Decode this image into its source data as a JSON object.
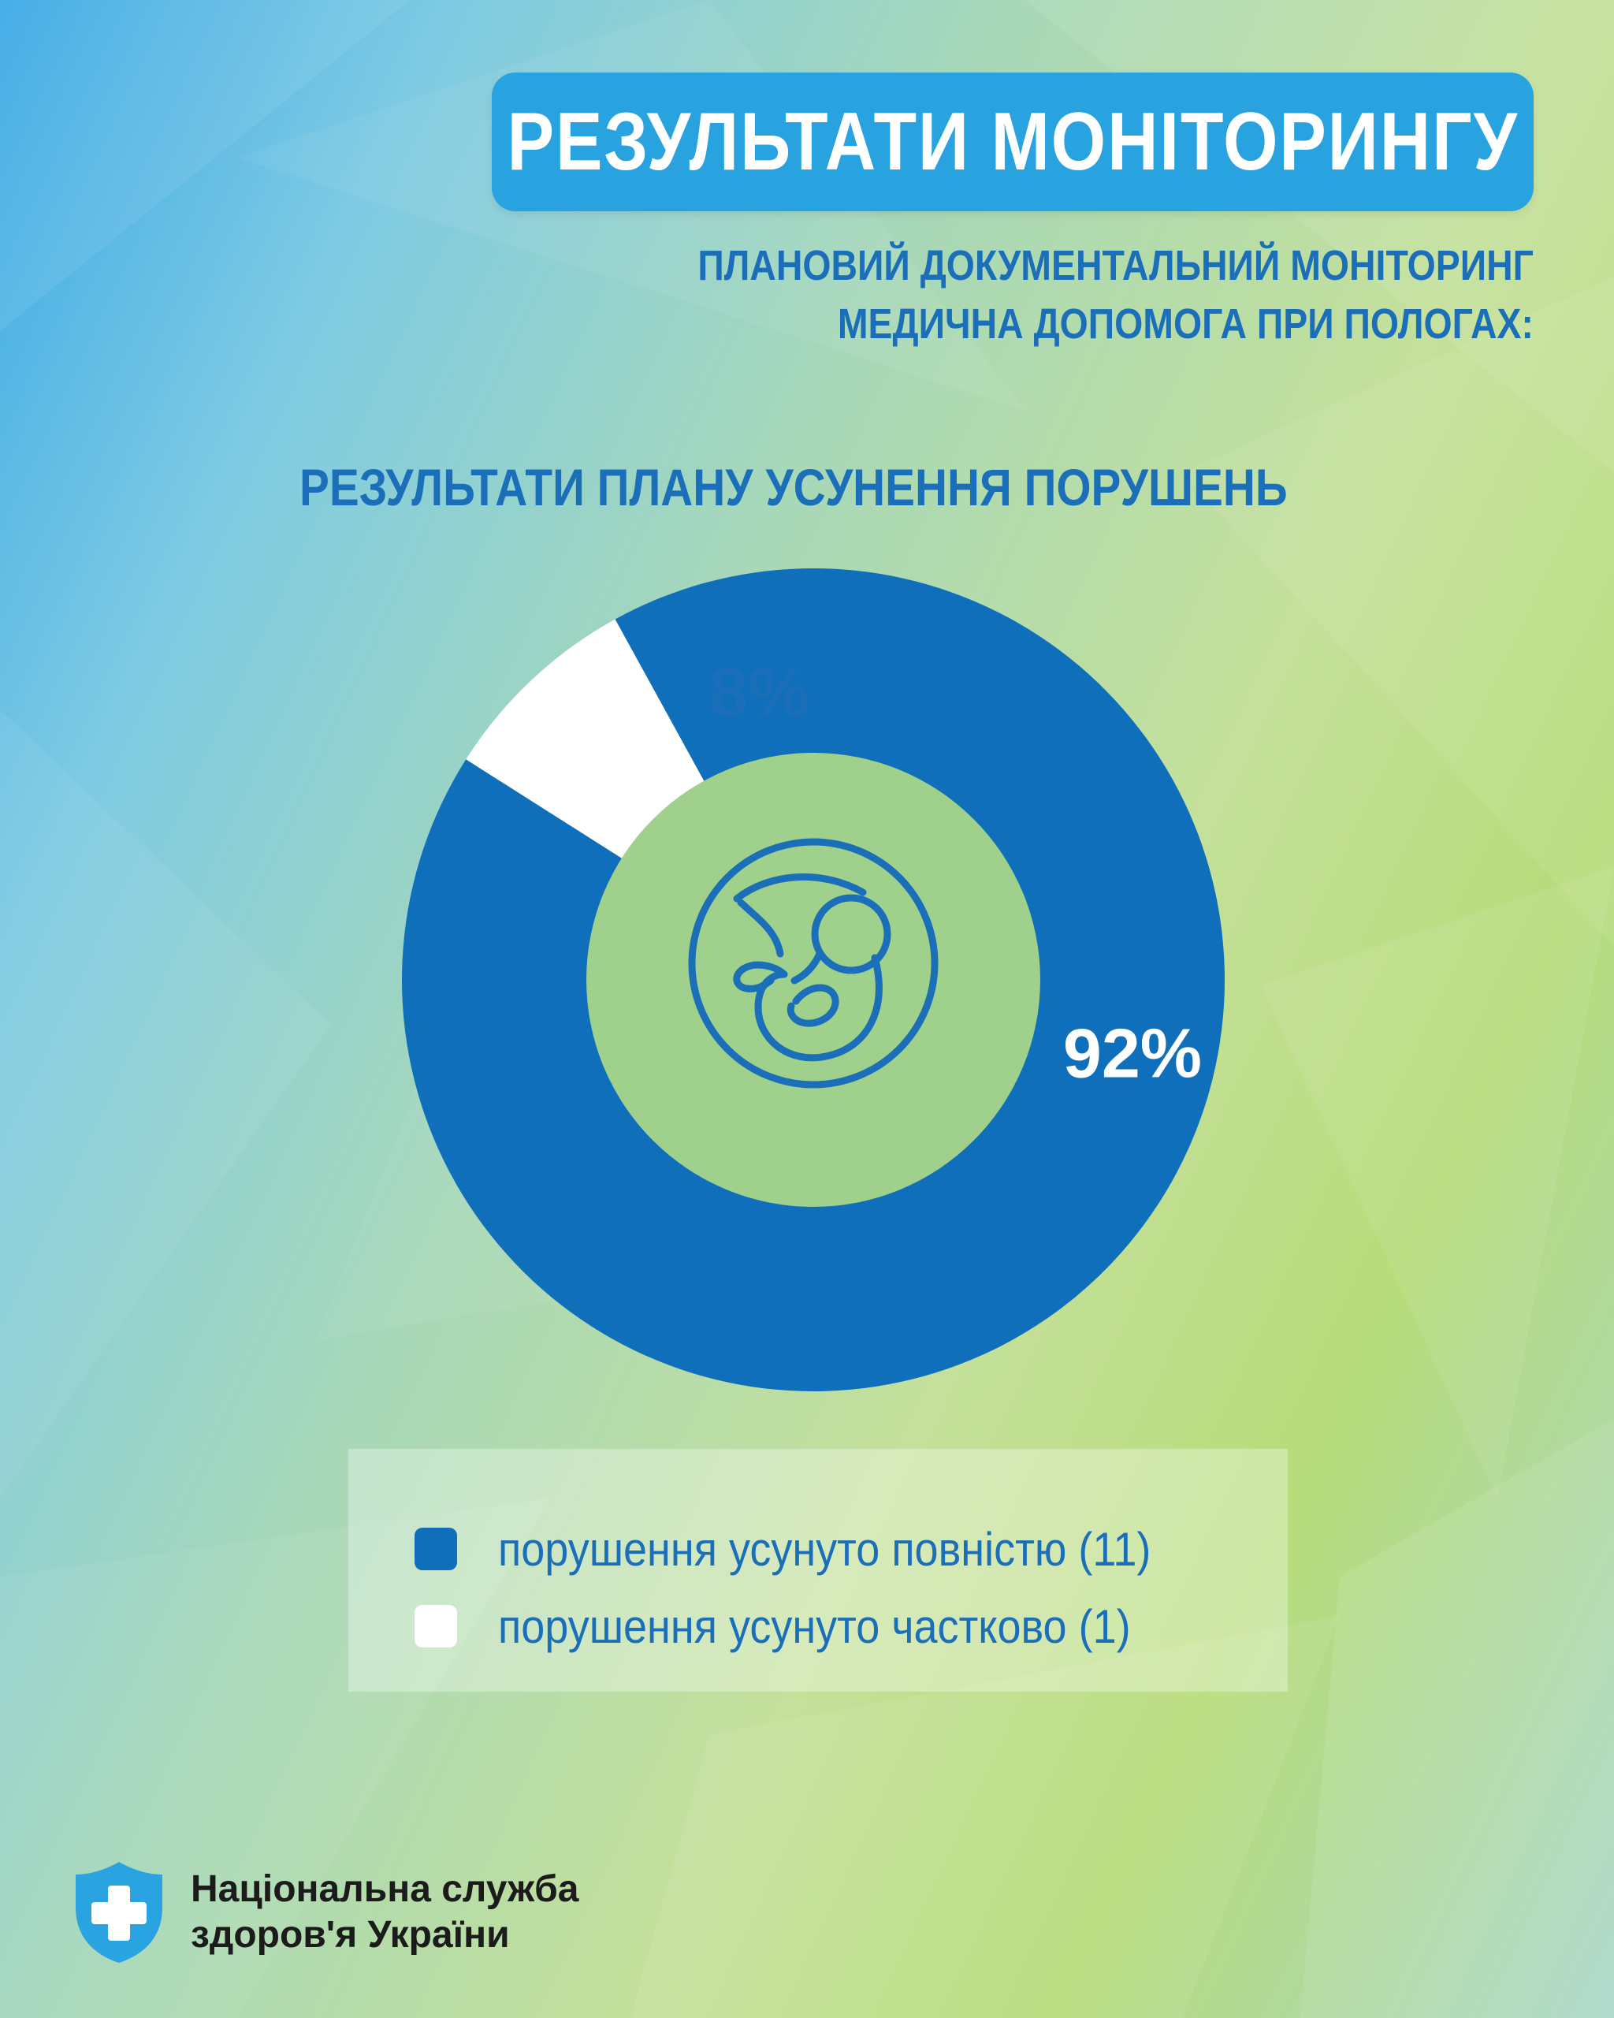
{
  "header": {
    "title": "РЕЗУЛЬТАТИ МОНІТОРИНГУ",
    "subtitle_line1": "ПЛАНОВИЙ ДОКУМЕНТАЛЬНИЙ МОНІТОРИНГ",
    "subtitle_line2": "МЕДИЧНА ДОПОМОГА ПРИ ПОЛОГАХ:"
  },
  "chart_data": {
    "type": "pie",
    "title": "РЕЗУЛЬТАТИ ПЛАНУ УСУНЕННЯ ПОРУШЕНЬ",
    "categories": [
      "порушення усунуто повністю (11)",
      "порушення усунуто частково (1)"
    ],
    "values": [
      92,
      8
    ],
    "data_labels": [
      "92%",
      "8%"
    ],
    "colors": [
      "#106fba",
      "#ffffff"
    ],
    "donut": true,
    "center_icon": "fetus-icon",
    "legend_position": "bottom"
  },
  "footer": {
    "org_line1": "Національна служба",
    "org_line2": "здоров'я України",
    "logo_icon": "shield-cross-icon"
  }
}
